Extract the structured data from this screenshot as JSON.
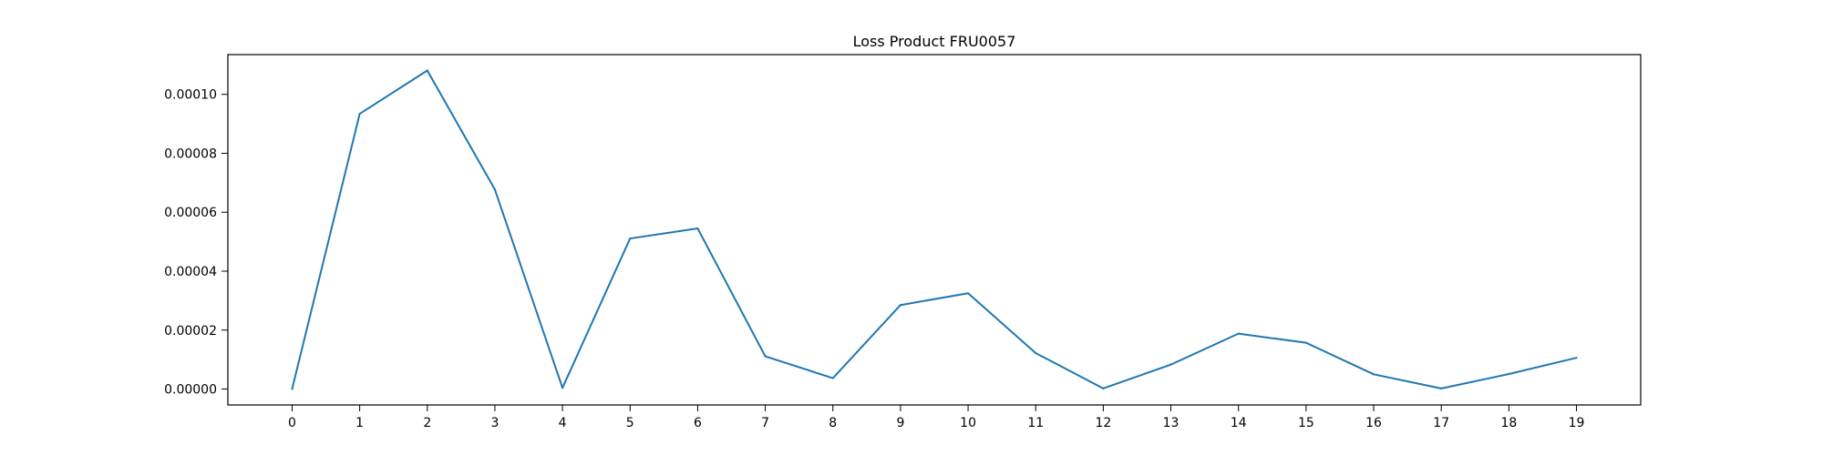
{
  "chart_data": {
    "type": "line",
    "title": "Loss Product FRU0057",
    "xlabel": "",
    "ylabel": "",
    "x": [
      0,
      1,
      2,
      3,
      4,
      5,
      6,
      7,
      8,
      9,
      10,
      11,
      12,
      13,
      14,
      15,
      16,
      17,
      18,
      19
    ],
    "x_tick_labels": [
      "0",
      "1",
      "2",
      "3",
      "4",
      "5",
      "6",
      "7",
      "8",
      "9",
      "10",
      "11",
      "12",
      "13",
      "14",
      "15",
      "16",
      "17",
      "18",
      "19"
    ],
    "y_ticks": [
      0.0,
      2e-05,
      4e-05,
      6e-05,
      8e-05,
      0.0001
    ],
    "y_tick_labels": [
      "0.00000",
      "0.00002",
      "0.00004",
      "0.00006",
      "0.00008",
      "0.00010"
    ],
    "xlim": [
      -0.95,
      19.95
    ],
    "ylim": [
      -5.4e-06,
      0.0001135
    ],
    "series": [
      {
        "color": "#1f77b4",
        "values": [
          0.0,
          9.34e-05,
          0.0001081,
          6.77e-05,
          4e-07,
          5.11e-05,
          5.45e-05,
          1.11e-05,
          3.7e-06,
          2.85e-05,
          3.25e-05,
          1.22e-05,
          2e-07,
          8.3e-06,
          1.88e-05,
          1.57e-05,
          5e-06,
          2e-07,
          5.1e-06,
          1.06e-05
        ]
      }
    ],
    "grid": false,
    "legend": "none"
  }
}
